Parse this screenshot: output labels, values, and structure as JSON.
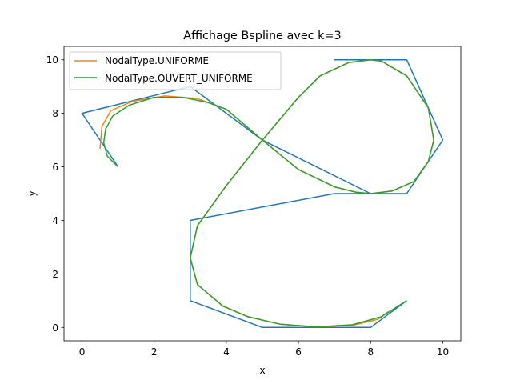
{
  "chart_data": {
    "type": "line",
    "title": "Affichage Bspline avec k=3",
    "xlabel": "x",
    "ylabel": "y",
    "xlim": [
      -0.5,
      10.5
    ],
    "ylim": [
      -0.5,
      10.5
    ],
    "xticks": [
      0,
      2,
      4,
      6,
      8,
      10
    ],
    "yticks": [
      0,
      2,
      4,
      6,
      8,
      10
    ],
    "grid": false,
    "legend_position": "upper-left",
    "series": [
      {
        "name": "",
        "color": "#1f77b4",
        "x": [
          1,
          0,
          3,
          4,
          5,
          8,
          9,
          10,
          9,
          7,
          7,
          9,
          10,
          9,
          7,
          3,
          3,
          5,
          8,
          9
        ],
        "y": [
          6,
          8,
          9,
          8,
          7,
          5,
          5,
          7,
          10,
          10,
          10,
          10,
          7,
          5,
          5,
          4,
          1,
          0,
          0,
          1
        ]
      },
      {
        "name": "NodalType.UNIFORME",
        "color": "#ff7f0e",
        "x": [
          0.5,
          0.55,
          0.8,
          1.4,
          2.3,
          3.2,
          4.0,
          5.0,
          6.0,
          7.0,
          7.6,
          8.0,
          8.6,
          9.2,
          9.6,
          9.75,
          9.6,
          9.0,
          8.3,
          8.0,
          7.4,
          6.6,
          6.0,
          5.0,
          4.0,
          3.2,
          3.0,
          3.2,
          3.9,
          4.6,
          5.5,
          6.5,
          7.5,
          8.2,
          8.5
        ],
        "y": [
          6.67,
          7.5,
          8.1,
          8.45,
          8.65,
          8.55,
          8.15,
          7.0,
          5.9,
          5.25,
          5.05,
          5.0,
          5.1,
          5.45,
          6.2,
          7.0,
          8.2,
          9.4,
          9.95,
          10.0,
          9.9,
          9.4,
          8.6,
          7.0,
          5.3,
          3.8,
          2.6,
          1.6,
          0.8,
          0.4,
          0.12,
          0.02,
          0.08,
          0.3,
          0.6
        ]
      },
      {
        "name": "NodalType.OUVERT_UNIFORME",
        "color": "#2ca02c",
        "x": [
          1.0,
          0.7,
          0.6,
          0.65,
          0.85,
          1.3,
          2.0,
          2.8,
          3.5,
          4.0,
          5.0,
          6.0,
          7.0,
          7.6,
          8.0,
          8.6,
          9.2,
          9.6,
          9.75,
          9.6,
          9.0,
          8.3,
          8.0,
          7.4,
          6.6,
          6.0,
          5.0,
          4.0,
          3.2,
          3.0,
          3.2,
          3.9,
          4.6,
          5.5,
          6.5,
          7.5,
          8.3,
          9.0
        ],
        "y": [
          6.0,
          6.4,
          6.9,
          7.4,
          7.9,
          8.3,
          8.6,
          8.6,
          8.4,
          8.15,
          7.0,
          5.9,
          5.25,
          5.05,
          5.0,
          5.1,
          5.45,
          6.2,
          7.0,
          8.2,
          9.4,
          9.95,
          10.0,
          9.9,
          9.4,
          8.6,
          7.0,
          5.3,
          3.8,
          2.6,
          1.6,
          0.8,
          0.4,
          0.12,
          0.02,
          0.1,
          0.4,
          1.0
        ]
      }
    ]
  }
}
